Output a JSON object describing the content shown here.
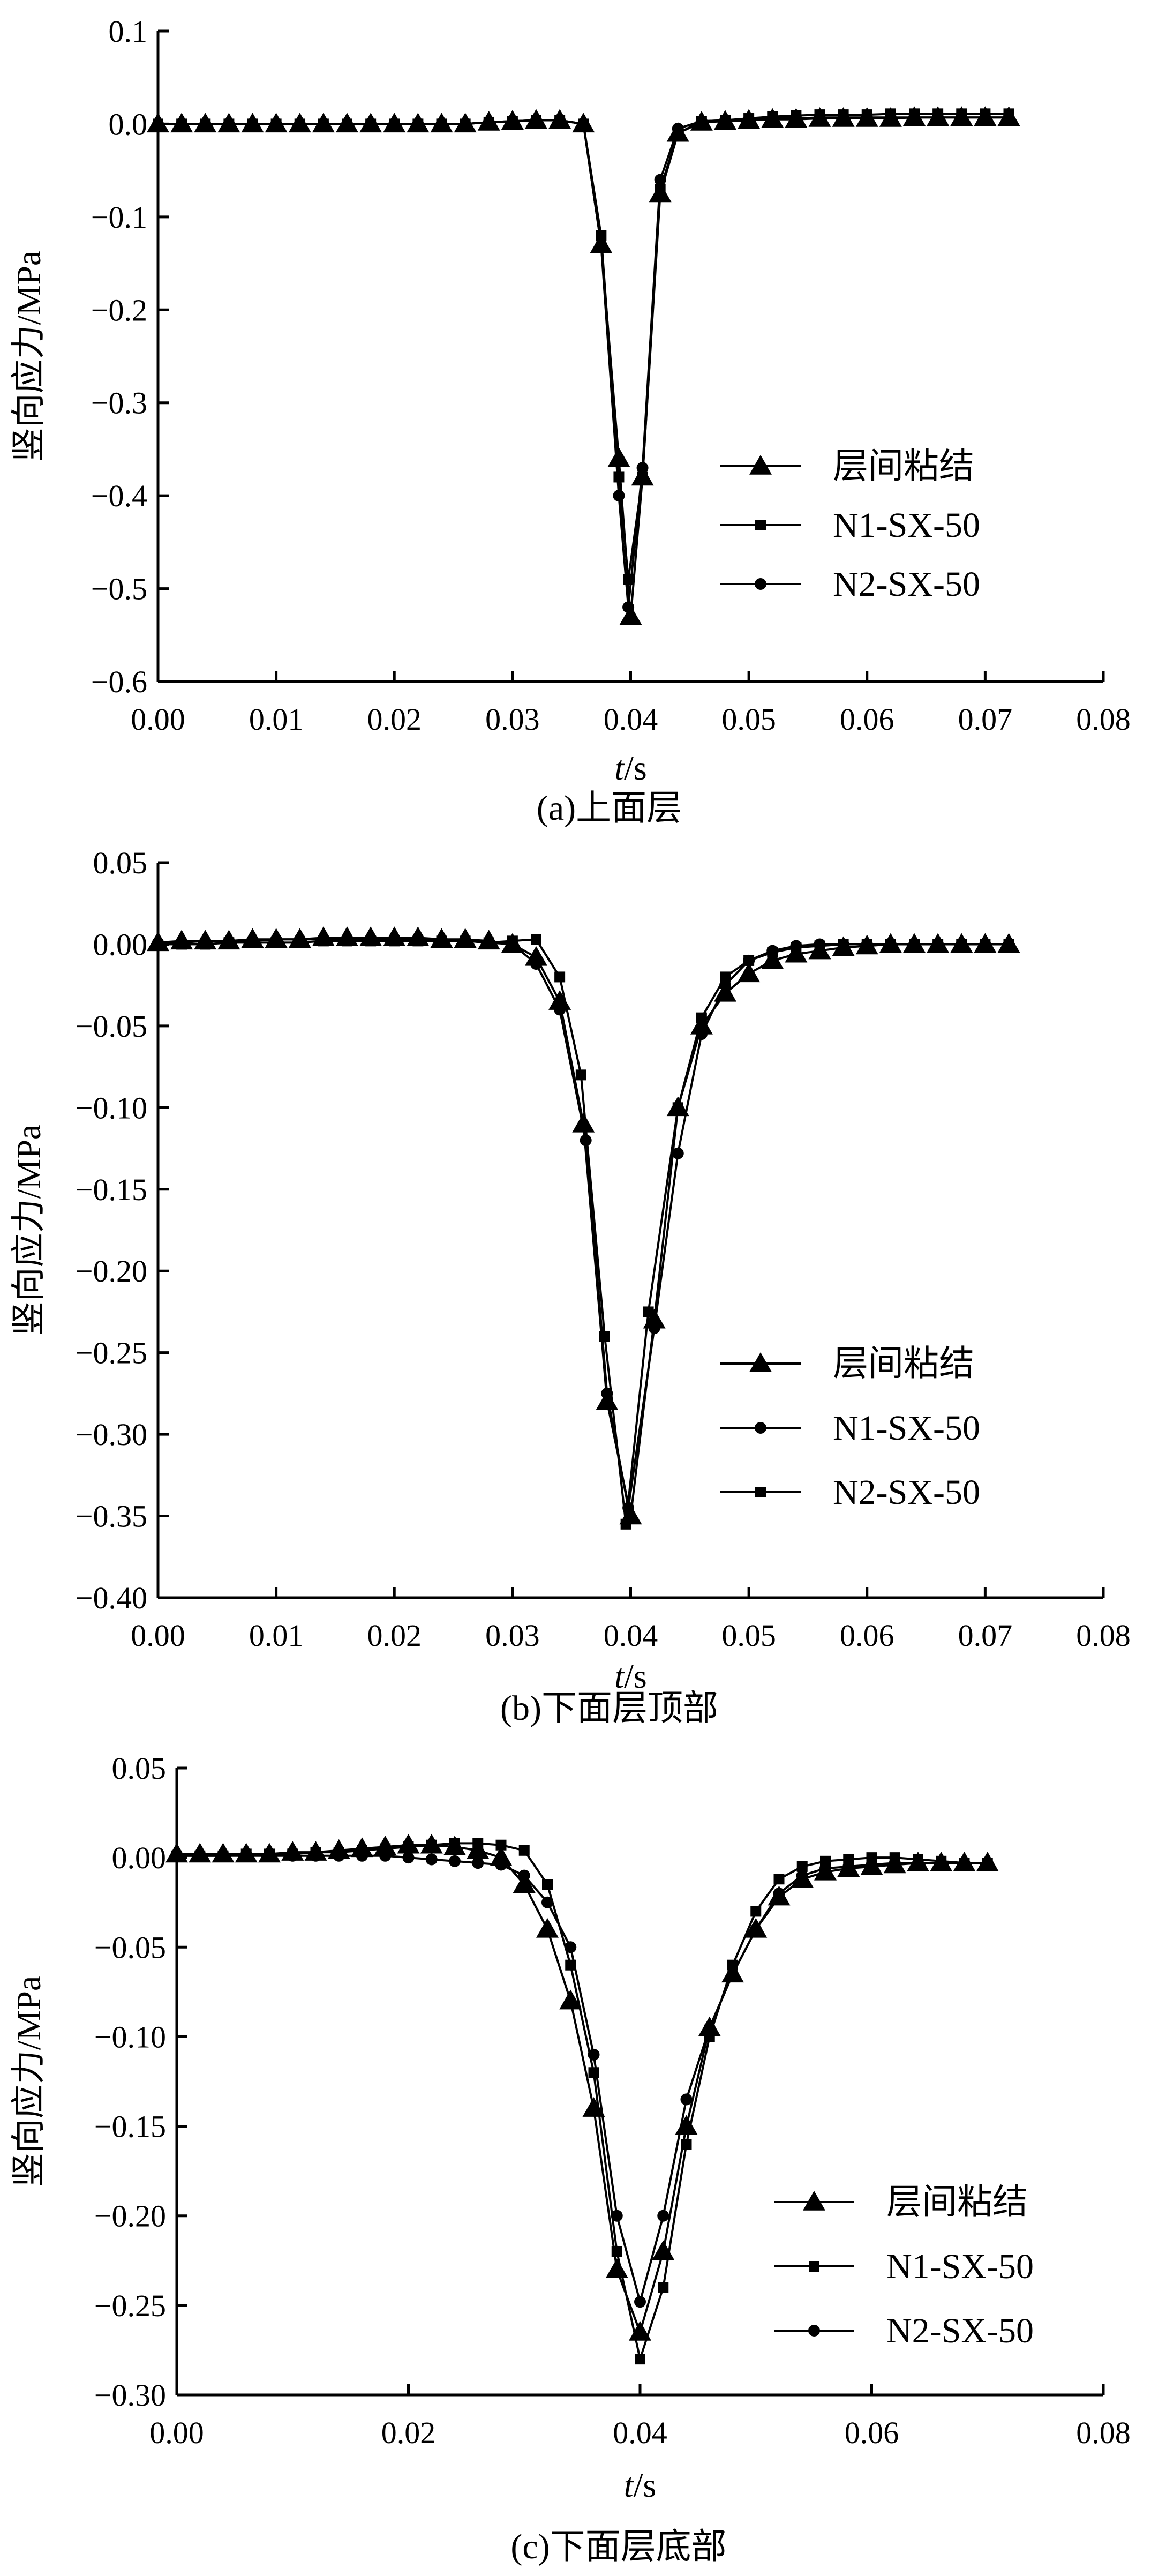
{
  "chart_data": [
    {
      "type": "line",
      "caption": "(a)上面层",
      "xlabel_italic": "t",
      "xlabel_unit": "/s",
      "ylabel": "竖向应力/MPa",
      "xlim": [
        0,
        0.08
      ],
      "ylim": [
        -0.6,
        0.1
      ],
      "xticks": [
        "0.00",
        "0.01",
        "0.02",
        "0.03",
        "0.04",
        "0.05",
        "0.06",
        "0.07",
        "0.08"
      ],
      "yticks": [
        "0.1",
        "0.0",
        "-0.1",
        "-0.2",
        "-0.3",
        "-0.4",
        "-0.5",
        "-0.6"
      ],
      "legend_position": "right",
      "series": [
        {
          "name": "层间粘结",
          "marker": "triangle",
          "x": [
            0,
            0.002,
            0.004,
            0.006,
            0.008,
            0.01,
            0.012,
            0.014,
            0.016,
            0.018,
            0.02,
            0.022,
            0.024,
            0.026,
            0.028,
            0.03,
            0.032,
            0.034,
            0.036,
            0.0375,
            0.039,
            0.04,
            0.041,
            0.0425,
            0.044,
            0.046,
            0.048,
            0.05,
            0.052,
            0.054,
            0.056,
            0.058,
            0.06,
            0.062,
            0.064,
            0.066,
            0.068,
            0.07,
            0.072
          ],
          "y": [
            0,
            0,
            0,
            0,
            0,
            0,
            0,
            0,
            0,
            0,
            0,
            0,
            0,
            0,
            0.002,
            0.003,
            0.004,
            0.004,
            0,
            -0.13,
            -0.36,
            -0.53,
            -0.38,
            -0.075,
            -0.01,
            0.002,
            0.003,
            0.004,
            0.005,
            0.005,
            0.006,
            0.006,
            0.006,
            0.006,
            0.007,
            0.007,
            0.007,
            0.007,
            0.007
          ]
        },
        {
          "name": "N1-SX-50",
          "marker": "square",
          "x": [
            0,
            0.002,
            0.004,
            0.006,
            0.008,
            0.01,
            0.012,
            0.014,
            0.016,
            0.018,
            0.02,
            0.022,
            0.024,
            0.026,
            0.028,
            0.03,
            0.032,
            0.034,
            0.036,
            0.0375,
            0.039,
            0.0398,
            0.041,
            0.0425,
            0.044,
            0.046,
            0.048,
            0.05,
            0.052,
            0.054,
            0.056,
            0.058,
            0.06,
            0.062,
            0.064,
            0.066,
            0.068,
            0.07,
            0.072
          ],
          "y": [
            0,
            0,
            0,
            0,
            0,
            0,
            0,
            0,
            0,
            0,
            0,
            0,
            0,
            0,
            0.002,
            0.003,
            0.004,
            0.004,
            0,
            -0.12,
            -0.38,
            -0.49,
            -0.38,
            -0.07,
            -0.01,
            0.003,
            0.004,
            0.006,
            0.008,
            0.009,
            0.01,
            0.01,
            0.01,
            0.011,
            0.011,
            0.011,
            0.011,
            0.011,
            0.011
          ]
        },
        {
          "name": "N2-SX-50",
          "marker": "circle",
          "x": [
            0,
            0.002,
            0.004,
            0.006,
            0.008,
            0.01,
            0.012,
            0.014,
            0.016,
            0.018,
            0.02,
            0.022,
            0.024,
            0.026,
            0.028,
            0.03,
            0.032,
            0.034,
            0.036,
            0.0375,
            0.039,
            0.0398,
            0.041,
            0.0425,
            0.044,
            0.046,
            0.048,
            0.05,
            0.052,
            0.054,
            0.056,
            0.058,
            0.06,
            0.062,
            0.064,
            0.066,
            0.068,
            0.07,
            0.072
          ],
          "y": [
            0,
            0,
            0,
            0,
            0,
            0,
            0,
            0,
            0,
            0,
            0,
            0,
            0,
            0,
            0.002,
            0.003,
            0.004,
            0.004,
            0,
            -0.13,
            -0.4,
            -0.52,
            -0.37,
            -0.06,
            -0.005,
            0.003,
            0.004,
            0.005,
            0.006,
            0.006,
            0.007,
            0.007,
            0.007,
            0.007,
            0.007,
            0.007,
            0.007,
            0.007,
            0.007
          ]
        }
      ]
    },
    {
      "type": "line",
      "caption": "(b)下面层顶部",
      "xlabel_italic": "t",
      "xlabel_unit": "/s",
      "ylabel": "竖向应力/MPa",
      "xlim": [
        0,
        0.08
      ],
      "ylim": [
        -0.4,
        0.05
      ],
      "xticks": [
        "0.00",
        "0.01",
        "0.02",
        "0.03",
        "0.04",
        "0.05",
        "0.06",
        "0.07",
        "0.08"
      ],
      "yticks": [
        "0.05",
        "0.00",
        "-0.05",
        "-0.10",
        "-0.15",
        "-0.20",
        "-0.25",
        "-0.30",
        "-0.35",
        "-0.40"
      ],
      "legend_position": "right",
      "series": [
        {
          "name": "层间粘结",
          "marker": "triangle",
          "x": [
            0,
            0.002,
            0.004,
            0.006,
            0.008,
            0.01,
            0.012,
            0.014,
            0.016,
            0.018,
            0.02,
            0.022,
            0.024,
            0.026,
            0.028,
            0.03,
            0.032,
            0.034,
            0.036,
            0.038,
            0.04,
            0.042,
            0.044,
            0.046,
            0.048,
            0.05,
            0.052,
            0.054,
            0.056,
            0.058,
            0.06,
            0.062,
            0.064,
            0.066,
            0.068,
            0.07,
            0.072
          ],
          "y": [
            0.001,
            0.002,
            0.002,
            0.002,
            0.003,
            0.003,
            0.003,
            0.004,
            0.004,
            0.004,
            0.004,
            0.004,
            0.003,
            0.003,
            0.002,
            0,
            -0.008,
            -0.035,
            -0.11,
            -0.28,
            -0.35,
            -0.23,
            -0.1,
            -0.05,
            -0.03,
            -0.018,
            -0.01,
            -0.006,
            -0.004,
            -0.002,
            -0.001,
            0,
            0,
            0,
            0,
            0,
            0
          ]
        },
        {
          "name": "N1-SX-50",
          "marker": "circle",
          "x": [
            0,
            0.002,
            0.004,
            0.006,
            0.008,
            0.01,
            0.012,
            0.014,
            0.016,
            0.018,
            0.02,
            0.022,
            0.024,
            0.026,
            0.028,
            0.03,
            0.032,
            0.034,
            0.0362,
            0.038,
            0.0398,
            0.042,
            0.044,
            0.046,
            0.048,
            0.05,
            0.052,
            0.054,
            0.056,
            0.058,
            0.06,
            0.062,
            0.064,
            0.066,
            0.068,
            0.07,
            0.072
          ],
          "y": [
            0.001,
            0.001,
            0.002,
            0.002,
            0.002,
            0.003,
            0.003,
            0.003,
            0.003,
            0.003,
            0.003,
            0.003,
            0.002,
            0.002,
            0.001,
            0,
            -0.012,
            -0.04,
            -0.12,
            -0.275,
            -0.345,
            -0.235,
            -0.128,
            -0.055,
            -0.025,
            -0.01,
            -0.004,
            -0.001,
            0,
            0,
            0,
            0,
            0,
            0,
            0,
            0,
            0
          ]
        },
        {
          "name": "N2-SX-50",
          "marker": "square",
          "x": [
            0,
            0.002,
            0.004,
            0.006,
            0.008,
            0.01,
            0.012,
            0.014,
            0.016,
            0.018,
            0.02,
            0.022,
            0.024,
            0.026,
            0.028,
            0.03,
            0.032,
            0.034,
            0.0358,
            0.0378,
            0.0396,
            0.0415,
            0.044,
            0.046,
            0.048,
            0.05,
            0.052,
            0.054,
            0.056,
            0.058,
            0.06,
            0.062,
            0.064,
            0.066,
            0.068,
            0.07,
            0.072
          ],
          "y": [
            0,
            0,
            0,
            0.001,
            0.001,
            0.001,
            0.001,
            0.002,
            0.002,
            0.002,
            0.002,
            0.002,
            0.002,
            0.002,
            0.001,
            0.002,
            0.003,
            -0.02,
            -0.08,
            -0.24,
            -0.355,
            -0.225,
            -0.1,
            -0.045,
            -0.02,
            -0.01,
            -0.005,
            -0.002,
            -0.001,
            0,
            0,
            0,
            0,
            0,
            0,
            0,
            0
          ]
        }
      ]
    },
    {
      "type": "line",
      "caption": "(c)下面层底部",
      "xlabel_italic": "t",
      "xlabel_unit": "/s",
      "ylabel": "竖向应力/MPa",
      "xlim": [
        0,
        0.08
      ],
      "ylim": [
        -0.3,
        0.05
      ],
      "xticks": [
        "0.00",
        "0.02",
        "0.04",
        "0.06",
        "0.08"
      ],
      "yticks": [
        "0.05",
        "0.00",
        "-0.05",
        "-0.10",
        "-0.15",
        "-0.20",
        "-0.25",
        "-0.30"
      ],
      "legend_position": "right",
      "series": [
        {
          "name": "层间粘结",
          "marker": "triangle",
          "x": [
            0,
            0.002,
            0.004,
            0.006,
            0.008,
            0.01,
            0.012,
            0.014,
            0.016,
            0.018,
            0.02,
            0.022,
            0.024,
            0.026,
            0.028,
            0.03,
            0.032,
            0.034,
            0.036,
            0.038,
            0.04,
            0.042,
            0.044,
            0.046,
            0.048,
            0.05,
            0.052,
            0.054,
            0.056,
            0.058,
            0.06,
            0.062,
            0.064,
            0.066,
            0.068,
            0.07
          ],
          "y": [
            0.002,
            0.002,
            0.002,
            0.002,
            0.002,
            0.003,
            0.003,
            0.004,
            0.005,
            0.006,
            0.007,
            0.007,
            0.006,
            0.004,
            0,
            -0.015,
            -0.04,
            -0.08,
            -0.14,
            -0.23,
            -0.265,
            -0.22,
            -0.15,
            -0.095,
            -0.065,
            -0.04,
            -0.022,
            -0.012,
            -0.008,
            -0.006,
            -0.005,
            -0.004,
            -0.003,
            -0.003,
            -0.003,
            -0.003
          ]
        },
        {
          "name": "N1-SX-50",
          "marker": "square",
          "x": [
            0,
            0.002,
            0.004,
            0.006,
            0.008,
            0.01,
            0.012,
            0.014,
            0.016,
            0.018,
            0.02,
            0.022,
            0.024,
            0.026,
            0.028,
            0.03,
            0.032,
            0.034,
            0.036,
            0.038,
            0.04,
            0.042,
            0.044,
            0.046,
            0.048,
            0.05,
            0.052,
            0.054,
            0.056,
            0.058,
            0.06,
            0.062,
            0.064,
            0.066,
            0.068,
            0.07
          ],
          "y": [
            0.001,
            0.001,
            0.001,
            0.002,
            0.002,
            0.002,
            0.003,
            0.003,
            0.004,
            0.005,
            0.006,
            0.007,
            0.008,
            0.008,
            0.007,
            0.004,
            -0.015,
            -0.06,
            -0.12,
            -0.22,
            -0.28,
            -0.24,
            -0.16,
            -0.1,
            -0.06,
            -0.03,
            -0.012,
            -0.005,
            -0.002,
            -0.001,
            0,
            0,
            -0.001,
            -0.002,
            -0.003,
            -0.003
          ]
        },
        {
          "name": "N2-SX-50",
          "marker": "circle",
          "x": [
            0,
            0.002,
            0.004,
            0.006,
            0.008,
            0.01,
            0.012,
            0.014,
            0.016,
            0.018,
            0.02,
            0.022,
            0.024,
            0.026,
            0.028,
            0.03,
            0.032,
            0.034,
            0.036,
            0.038,
            0.04,
            0.042,
            0.044,
            0.046,
            0.048,
            0.05,
            0.052,
            0.054,
            0.056,
            0.058,
            0.06,
            0.062,
            0.064,
            0.066,
            0.068,
            0.07
          ],
          "y": [
            0.001,
            0.001,
            0.001,
            0.001,
            0.001,
            0.001,
            0.001,
            0.001,
            0.001,
            0.001,
            0,
            -0.001,
            -0.002,
            -0.003,
            -0.004,
            -0.01,
            -0.025,
            -0.05,
            -0.11,
            -0.2,
            -0.248,
            -0.2,
            -0.135,
            -0.095,
            -0.065,
            -0.04,
            -0.02,
            -0.01,
            -0.006,
            -0.005,
            -0.004,
            -0.003,
            -0.003,
            -0.003,
            -0.003,
            -0.003
          ]
        }
      ]
    }
  ]
}
